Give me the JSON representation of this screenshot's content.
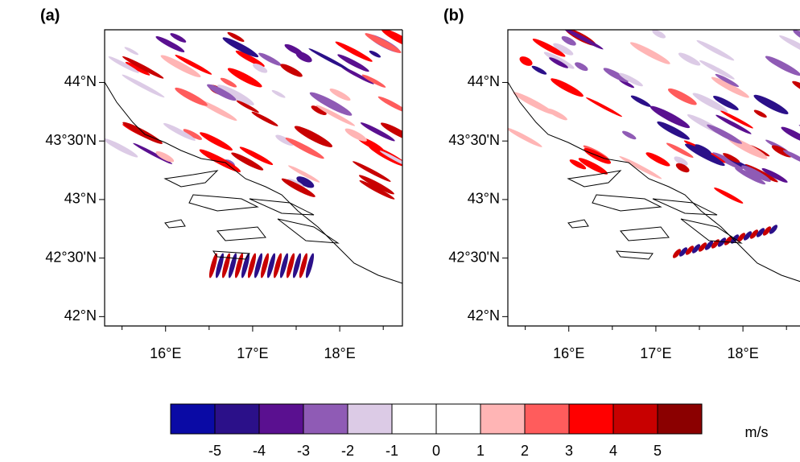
{
  "panels": [
    {
      "label": "(a)"
    },
    {
      "label": "(b)"
    }
  ],
  "xlim": [
    15.3,
    18.72
  ],
  "ylim": [
    41.92,
    44.45
  ],
  "lat_ticks": [
    {
      "value": 44,
      "label": "44°N"
    },
    {
      "value": 43.5,
      "label": "43°30'N"
    },
    {
      "value": 43,
      "label": "43°N"
    },
    {
      "value": 42.5,
      "label": "42°30'N"
    },
    {
      "value": 42,
      "label": "42°N"
    }
  ],
  "lon_ticks": [
    {
      "value": 16,
      "label": "16°E"
    },
    {
      "value": 17,
      "label": "17°E"
    },
    {
      "value": 18,
      "label": "18°E"
    }
  ],
  "lon_minor_ticks": [
    15.5,
    16.5,
    17.5,
    18.5
  ],
  "colorbar": {
    "levels": [
      -5,
      -4,
      -3,
      -2,
      -1,
      0,
      1,
      2,
      3,
      4,
      5
    ],
    "colors": [
      "#0a0aa5",
      "#2b1089",
      "#5a1090",
      "#8f5bb5",
      "#dccbe6",
      "#ffffff",
      "#ffffff",
      "#ffb5b5",
      "#ff5c5c",
      "#ff0000",
      "#c80000",
      "#8b0000"
    ],
    "unit": "m/s"
  }
}
